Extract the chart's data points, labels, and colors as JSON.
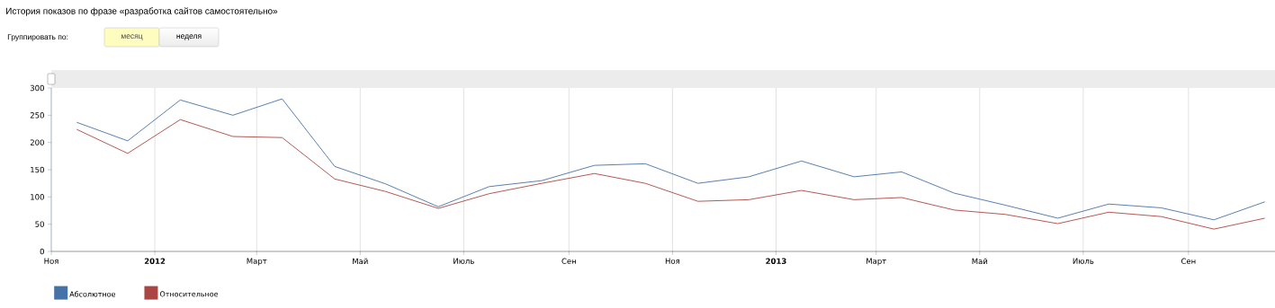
{
  "chart_data": {
    "type": "line",
    "title": "История показов по фразе «разработка сайтов самостоятельно»",
    "annotations": [
      "Группировать по:",
      "месяц",
      "неделя"
    ],
    "x": [
      "2011-11-16",
      "2011-12-16",
      "2012-01-16",
      "2012-02-16",
      "2012-03-16",
      "2012-04-16",
      "2012-05-16",
      "2012-06-16",
      "2012-07-16",
      "2012-08-16",
      "2012-09-16",
      "2012-10-16",
      "2012-11-16",
      "2012-12-16",
      "2013-01-16",
      "2013-02-16",
      "2013-03-16",
      "2013-04-16",
      "2013-05-16",
      "2013-06-16",
      "2013-07-16",
      "2013-08-16",
      "2013-09-16",
      "2013-10-16"
    ],
    "series": [
      {
        "name": "Абсолютное",
        "color": "#4572a7",
        "values": [
          237,
          203,
          278,
          250,
          280,
          156,
          124,
          82,
          119,
          130,
          158,
          161,
          125,
          137,
          166,
          137,
          146,
          107,
          85,
          61,
          87,
          80,
          58,
          91
        ]
      },
      {
        "name": "Относительное",
        "color": "#aa4643",
        "values": [
          224,
          180,
          242,
          211,
          209,
          133,
          110,
          79,
          106,
          125,
          143,
          125,
          92,
          95,
          112,
          95,
          99,
          76,
          68,
          51,
          72,
          64,
          41,
          61
        ]
      }
    ],
    "xlim": [
      "2011-11-01",
      "2013-10-22"
    ],
    "xticks": [
      {
        "value": "2011-11-01",
        "label": "Ноя"
      },
      {
        "value": "2012-01-01",
        "label": "2012"
      },
      {
        "value": "2012-03-01",
        "label": "Март"
      },
      {
        "value": "2012-05-01",
        "label": "Май"
      },
      {
        "value": "2012-07-01",
        "label": "Июль"
      },
      {
        "value": "2012-09-01",
        "label": "Сен"
      },
      {
        "value": "2012-11-01",
        "label": "Ноя"
      },
      {
        "value": "2013-01-01",
        "label": "2013"
      },
      {
        "value": "2013-03-01",
        "label": "Март"
      },
      {
        "value": "2013-05-01",
        "label": "Май"
      },
      {
        "value": "2013-07-01",
        "label": "Июль"
      },
      {
        "value": "2013-09-01",
        "label": "Сен"
      }
    ],
    "ylim": [
      0,
      300
    ],
    "yticks": [
      0,
      50,
      100,
      150,
      200,
      250,
      300
    ],
    "grid": "x",
    "legend": "bottom left",
    "marker": "none",
    "line_style": "solid"
  }
}
